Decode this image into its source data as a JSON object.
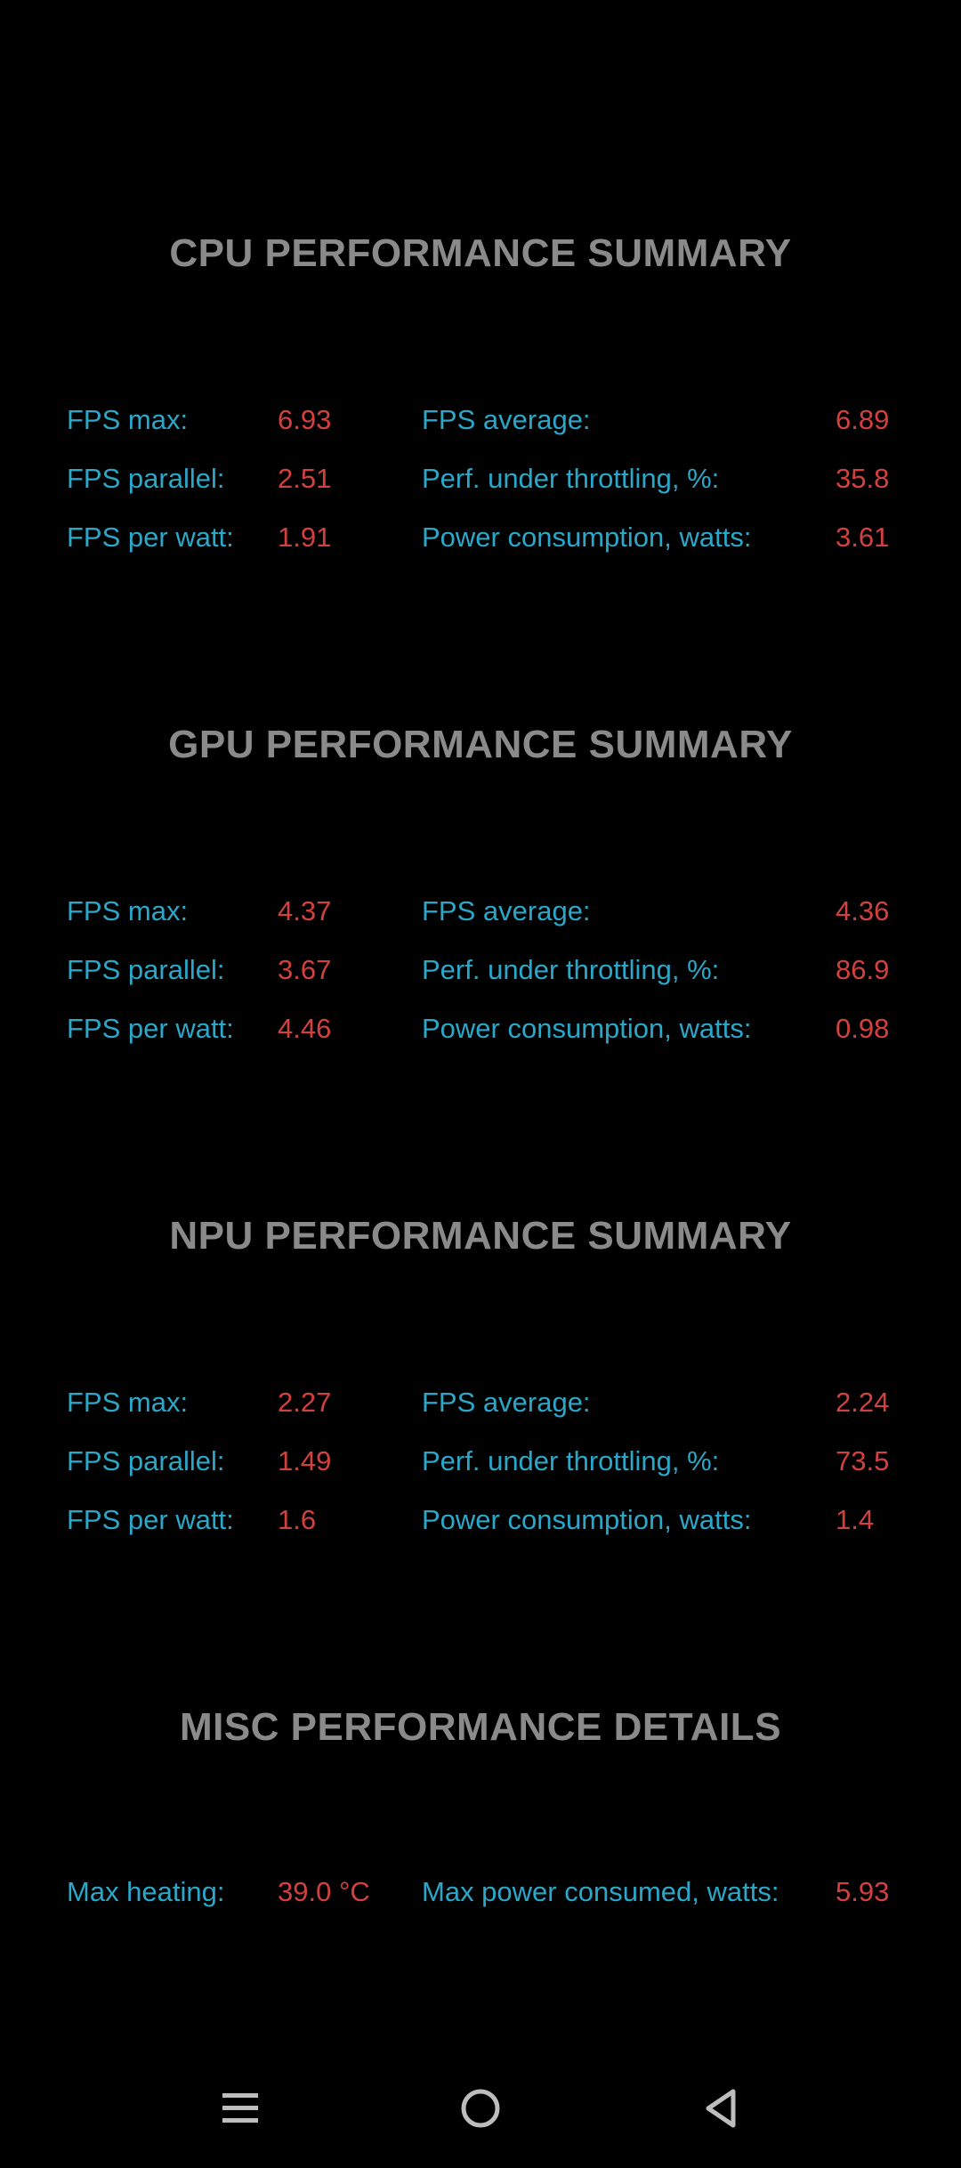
{
  "sections": [
    {
      "title": "CPU PERFORMANCE SUMMARY",
      "rows": [
        {
          "l1": "FPS max:",
          "v1": "6.93",
          "l2": "FPS average:",
          "v2": "6.89"
        },
        {
          "l1": "FPS parallel:",
          "v1": "2.51",
          "l2": "Perf. under throttling, %:",
          "v2": "35.8"
        },
        {
          "l1": "FPS per watt:",
          "v1": "1.91",
          "l2": "Power consumption, watts:",
          "v2": "3.61"
        }
      ]
    },
    {
      "title": "GPU PERFORMANCE SUMMARY",
      "rows": [
        {
          "l1": "FPS max:",
          "v1": "4.37",
          "l2": "FPS average:",
          "v2": "4.36"
        },
        {
          "l1": "FPS parallel:",
          "v1": "3.67",
          "l2": "Perf. under throttling, %:",
          "v2": "86.9"
        },
        {
          "l1": "FPS per watt:",
          "v1": "4.46",
          "l2": "Power consumption, watts:",
          "v2": "0.98"
        }
      ]
    },
    {
      "title": "NPU PERFORMANCE SUMMARY",
      "rows": [
        {
          "l1": "FPS max:",
          "v1": "2.27",
          "l2": "FPS average:",
          "v2": "2.24"
        },
        {
          "l1": "FPS parallel:",
          "v1": "1.49",
          "l2": "Perf. under throttling, %:",
          "v2": "73.5"
        },
        {
          "l1": "FPS per watt:",
          "v1": "1.6",
          "l2": "Power consumption, watts:",
          "v2": "1.4"
        }
      ]
    },
    {
      "title": "MISC PERFORMANCE DETAILS",
      "rows": [
        {
          "l1": "Max heating:",
          "v1": "39.0 °C",
          "l2": "Max power consumed, watts:",
          "v2": "5.93"
        }
      ]
    }
  ],
  "navbar": {
    "menu_icon": "menu-icon",
    "home_icon": "home-circle-icon",
    "back_icon": "back-triangle-icon"
  },
  "colors": {
    "background": "#000000",
    "title": "#8a8a8a",
    "label": "#2aa7c9",
    "value": "#d2413e",
    "nav_icon": "#bdbdbd"
  }
}
